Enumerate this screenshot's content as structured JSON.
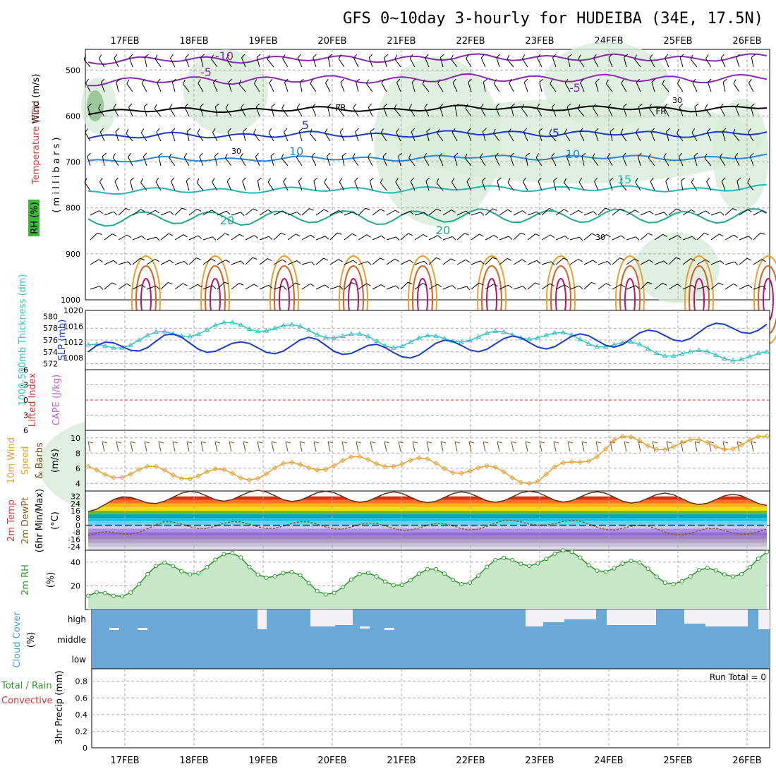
{
  "title": "GFS 0~10day 3-hourly for HUDEIBA (34E, 17.5N)",
  "dates": [
    "17FEB",
    "18FEB",
    "19FEB",
    "20FEB",
    "21FEB",
    "22FEB",
    "23FEB",
    "24FEB",
    "25FEB",
    "26FEB"
  ],
  "colors": {
    "grid": "#aaaaaa",
    "rh_fill": "#d8ecd8",
    "slp": "#1a3cc8",
    "thickness": "#32c3c3",
    "wind10": "#e8a030",
    "barb": "#7a4a20",
    "rh2m": "#2a9a2a",
    "cloud": "#6aa8d8",
    "li_zero": "#e03030"
  },
  "panels": {
    "upper_air": {
      "ylabel_wind": "Wind (m/s)",
      "ylabel_temp": "Temperature (°C)",
      "ylabel_rh": "RH (%)",
      "ylabel_pressure": "( m i l l i b a r s )",
      "yticks": [
        "500",
        "600",
        "700",
        "800",
        "900",
        "1000"
      ],
      "isotherm_labels": [
        "-10",
        "-5",
        "-5",
        "FR",
        "FR",
        "5",
        "5",
        "10",
        "10",
        "15",
        "20",
        "20"
      ],
      "rh_labels": [
        "30",
        "30",
        "30"
      ]
    },
    "thickness_slp": {
      "ylabel_thickness": "1000-500mb Thickness (dm)",
      "ylabel_slp": "SLP (mb)",
      "thickness_ticks": [
        "580",
        "578",
        "576",
        "574",
        "572"
      ],
      "slp_ticks": [
        "1020",
        "1016",
        "1012",
        "1008"
      ]
    },
    "stability": {
      "ylabel_li": "Lifted Index",
      "ylabel_cape": "CAPE (J/kg)",
      "yticks": [
        "-6",
        "-3",
        "0",
        "3",
        "6"
      ]
    },
    "wind10m": {
      "ylabel_1": "10m Wind",
      "ylabel_2": "Speed",
      "ylabel_3": "& Barbs",
      "unit": "(m/s)",
      "yticks": [
        "10",
        "8",
        "6",
        "4"
      ]
    },
    "temp2m": {
      "ylabel_1": "2m Temp",
      "ylabel_2": "2m DewPt",
      "ylabel_3": "(6hr Min/Max)",
      "unit": "(°C)",
      "yticks": [
        "32",
        "24",
        "16",
        "8",
        "0",
        "-8",
        "-16",
        "-24"
      ]
    },
    "rh2m": {
      "ylabel": "2m RH",
      "unit": "(%)",
      "yticks": [
        "40",
        "20"
      ]
    },
    "cloud": {
      "ylabel": "Cloud Cover",
      "unit": "(%)",
      "levels": [
        "high",
        "middle",
        "low"
      ]
    },
    "precip": {
      "ylabel_1": "Total / Rain",
      "ylabel_2": "Convective",
      "ylabel_3": "3hr Precip (mm)",
      "yticks": [
        "0.8",
        "0.6",
        "0.4",
        "0.2",
        "0"
      ],
      "run_total": "Run Total = 0"
    }
  },
  "chart_data": [
    {
      "type": "line",
      "name": "slp",
      "x": [
        "17FEB",
        "18FEB",
        "19FEB",
        "20FEB",
        "21FEB",
        "22FEB",
        "23FEB",
        "24FEB",
        "25FEB",
        "26FEB"
      ],
      "series": [
        {
          "name": "SLP (mb)",
          "values": [
            1009.5,
            1012.5,
            1010.2,
            1011.5,
            1009.2,
            1011.2,
            1012.0,
            1012.5,
            1014.2,
            1016.5
          ]
        },
        {
          "name": "1000-500mb Thickness (dm)",
          "values": [
            574.4,
            576.8,
            578.5,
            577.5,
            575.4,
            576.5,
            577.0,
            575.2,
            573.5,
            573.2
          ]
        }
      ]
    },
    {
      "type": "line",
      "name": "wind10m",
      "x": [
        "17FEB",
        "18FEB",
        "19FEB",
        "20FEB",
        "21FEB",
        "22FEB",
        "23FEB",
        "24FEB",
        "25FEB",
        "26FEB"
      ],
      "series": [
        {
          "name": "Speed",
          "values": [
            5.5,
            5.5,
            5.0,
            6.5,
            7.0,
            6.0,
            4.5,
            9.5,
            9.0,
            9.5
          ]
        }
      ],
      "ylim": [
        4,
        10
      ]
    },
    {
      "type": "line",
      "name": "temp2m",
      "x": [
        "17FEB",
        "18FEB",
        "19FEB",
        "20FEB",
        "21FEB",
        "22FEB",
        "23FEB",
        "24FEB",
        "25FEB",
        "26FEB"
      ],
      "series": [
        {
          "name": "2m Temp",
          "values": [
            21,
            31,
            33,
            32,
            31,
            31,
            32,
            31,
            29,
            28
          ]
        },
        {
          "name": "2m DewPt",
          "values": [
            -14,
            0,
            0,
            0,
            -2,
            -2,
            4,
            -2,
            -8,
            -6
          ]
        }
      ]
    },
    {
      "type": "area",
      "name": "rh2m",
      "x": [
        "17FEB",
        "18FEB",
        "19FEB",
        "20FEB",
        "21FEB",
        "22FEB",
        "23FEB",
        "24FEB",
        "25FEB",
        "26FEB"
      ],
      "series": [
        {
          "name": "2m RH",
          "values": [
            5,
            33,
            42,
            18,
            27,
            28,
            46,
            37,
            25,
            42
          ]
        }
      ],
      "ylim": [
        0,
        50
      ]
    }
  ]
}
